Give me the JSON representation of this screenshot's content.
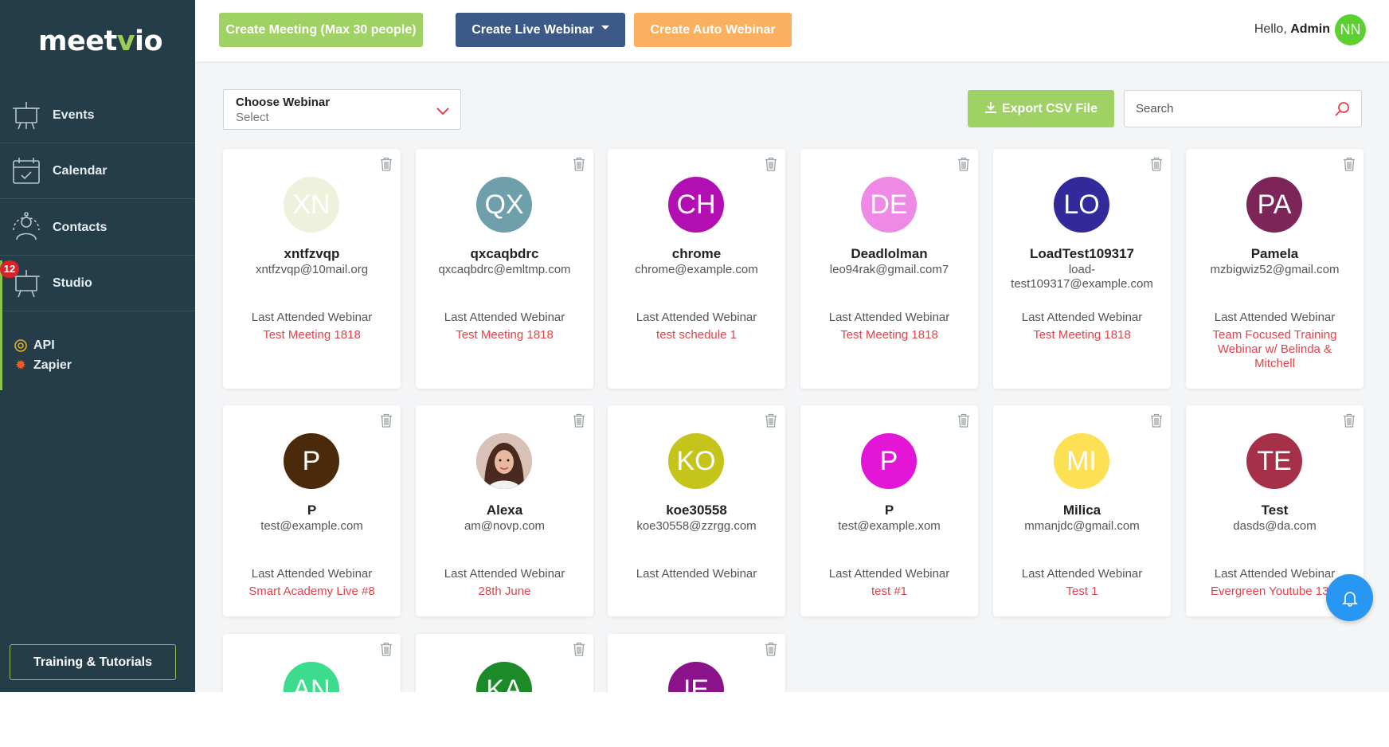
{
  "app": {
    "logo_prefix": "meet",
    "logo_v": "v",
    "logo_suffix": "io"
  },
  "sidebar": {
    "items": [
      {
        "label": "Events",
        "icon": "events-icon"
      },
      {
        "label": "Calendar",
        "icon": "calendar-icon"
      },
      {
        "label": "Contacts",
        "icon": "contacts-icon"
      },
      {
        "label": "Studio",
        "icon": "studio-icon"
      }
    ],
    "studio_badge": "12",
    "integrations": [
      {
        "label": "API",
        "icon": "api-icon"
      },
      {
        "label": "Zapier",
        "icon": "zapier-icon"
      }
    ],
    "training_label": "Training & Tutorials"
  },
  "topbar": {
    "create_meeting": "Create Meeting (Max 30 people)",
    "create_live": "Create Live Webinar",
    "create_auto": "Create Auto Webinar",
    "hello": "Hello,",
    "user_name": "Admin",
    "user_initials": "NN"
  },
  "filters": {
    "choose_label": "Choose Webinar",
    "choose_value": "Select",
    "export_label": "Export CSV File",
    "search_placeholder": "Search"
  },
  "colors": {
    "sidebar": "#253d48",
    "accent_green": "#9fd164",
    "live_blue": "#3d5987",
    "auto_orange": "#fbb05f",
    "webinar_red": "#e5424b"
  },
  "contacts": [
    {
      "initials": "XN",
      "color": "#eef2dc",
      "name": "xntfzvqp",
      "email": "xntfzvqp@10mail.org",
      "last_label": "Last Attended Webinar",
      "webinar": "Test Meeting 1818"
    },
    {
      "initials": "QX",
      "color": "#6e9fab",
      "name": "qxcaqbdrc",
      "email": "qxcaqbdrc@emltmp.com",
      "last_label": "Last Attended Webinar",
      "webinar": "Test Meeting 1818"
    },
    {
      "initials": "CH",
      "color": "#b10fb1",
      "name": "chrome",
      "email": "chrome@example.com",
      "last_label": "Last Attended Webinar",
      "webinar": "test schedule 1"
    },
    {
      "initials": "DE",
      "color": "#ee8ae5",
      "name": "Deadlolman",
      "email": "leo94rak@gmail.com7",
      "last_label": "Last Attended Webinar",
      "webinar": "Test Meeting 1818"
    },
    {
      "initials": "LO",
      "color": "#33299a",
      "name": "LoadTest109317",
      "email": "load-test109317@example.com",
      "last_label": "Last Attended Webinar",
      "webinar": "Test Meeting 1818"
    },
    {
      "initials": "PA",
      "color": "#7d2459",
      "name": "Pamela",
      "email": "mzbigwiz52@gmail.com",
      "last_label": "Last Attended Webinar",
      "webinar": "Team Focused Training Webinar w/ Belinda & Mitchell"
    },
    {
      "initials": "P",
      "color": "#4a2a0a",
      "name": "P",
      "email": "test@example.com",
      "last_label": "Last Attended Webinar",
      "webinar": "Smart Academy Live #8"
    },
    {
      "initials": "",
      "color": "#b9786c",
      "name": "Alexa",
      "email": "am@novp.com",
      "last_label": "Last Attended Webinar",
      "webinar": "28th June",
      "photo": true
    },
    {
      "initials": "KO",
      "color": "#c4c41a",
      "name": "koe30558",
      "email": "koe30558@zzrgg.com",
      "last_label": "Last Attended Webinar",
      "webinar": ""
    },
    {
      "initials": "P",
      "color": "#e416d6",
      "name": "P",
      "email": "test@example.xom",
      "last_label": "Last Attended Webinar",
      "webinar": "test #1"
    },
    {
      "initials": "MI",
      "color": "#fde053",
      "name": "Milica",
      "email": "mmanjdc@gmail.com",
      "last_label": "Last Attended Webinar",
      "webinar": "Test 1"
    },
    {
      "initials": "TE",
      "color": "#a63048",
      "name": "Test",
      "email": "dasds@da.com",
      "last_label": "Last Attended Webinar",
      "webinar": "Evergreen Youtube 13.1"
    },
    {
      "initials": "AN",
      "color": "#3cdc8f",
      "name": "",
      "email": "",
      "last_label": "",
      "webinar": ""
    },
    {
      "initials": "KA",
      "color": "#1d8a2a",
      "name": "",
      "email": "",
      "last_label": "",
      "webinar": ""
    },
    {
      "initials": "IE",
      "color": "#8a138c",
      "name": "",
      "email": "",
      "last_label": "",
      "webinar": ""
    }
  ],
  "notification_icon": "bell-icon"
}
